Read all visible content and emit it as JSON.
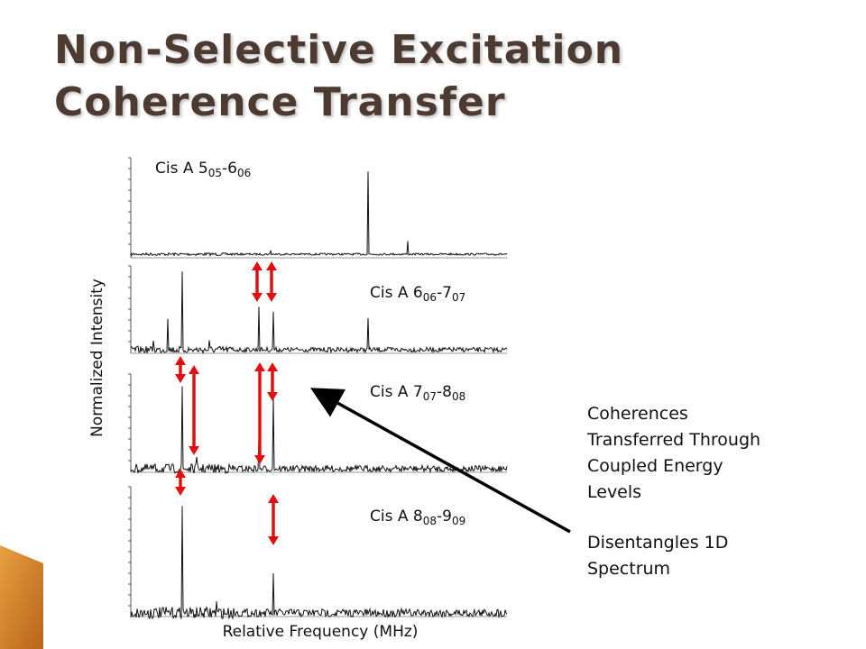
{
  "title": {
    "lines": [
      "Non-Selective Excitation",
      "Coherence Transfer"
    ]
  },
  "panels": [
    {
      "label": {
        "base": "Cis A 5",
        "sub1": "05",
        "mid": "-6",
        "sub2": "06"
      }
    },
    {
      "label": {
        "base": "Cis A 6",
        "sub1": "06",
        "mid": "-7",
        "sub2": "07"
      }
    },
    {
      "label": {
        "base": "Cis A 7",
        "sub1": "07",
        "mid": "-8",
        "sub2": "08"
      }
    },
    {
      "label": {
        "base": "Cis A 8",
        "sub1": "08",
        "mid": "-9",
        "sub2": "09"
      }
    }
  ],
  "y_axis_label": "Normalized Intensity",
  "x_axis_label": "Relative Frequency (MHz)",
  "notes": [
    {
      "lines": [
        "Coherences",
        "Transferred Through",
        "Coupled Energy",
        "Levels"
      ]
    },
    {
      "lines": [
        "Disentangles 1D",
        "Spectrum"
      ]
    }
  ]
}
